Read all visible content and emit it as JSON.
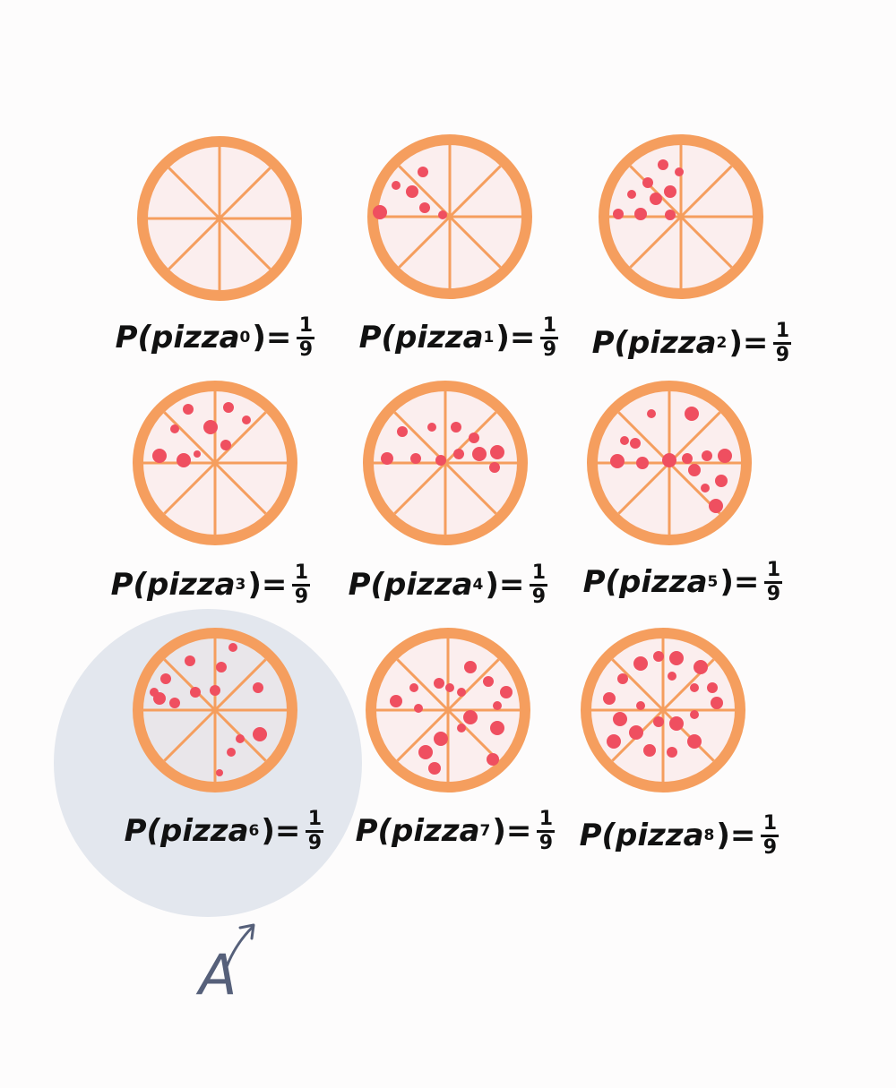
{
  "colors": {
    "background": "#fdfcfc",
    "crust": "#f59e5e",
    "cheese": "#fbeeee",
    "cheese_selected": "#e9e6ea",
    "pepperoni": "#ef4f60",
    "event_region": "#e3e7ee",
    "annotation": "#56607a"
  },
  "icons": {
    "pizza": "pizza-icon",
    "pointer": "curved-arrow-icon"
  },
  "pizzas": [
    {
      "prefix": "P(pizza",
      "sub": "0",
      "eq": ")=",
      "num": "1",
      "den": "9",
      "pepperoni_count": 0,
      "in_event_a": false
    },
    {
      "prefix": "P(pizza",
      "sub": "1",
      "eq": ")=",
      "num": "1",
      "den": "9",
      "pepperoni_count": 6,
      "in_event_a": false
    },
    {
      "prefix": "P(pizza",
      "sub": "2",
      "eq": ")=",
      "num": "1",
      "den": "9",
      "pepperoni_count": 9,
      "in_event_a": false
    },
    {
      "prefix": "P(pizza",
      "sub": "3",
      "eq": ")=",
      "num": "1",
      "den": "9",
      "pepperoni_count": 9,
      "in_event_a": false
    },
    {
      "prefix": "P(pizza",
      "sub": "4",
      "eq": ")=",
      "num": "1",
      "den": "9",
      "pepperoni_count": 11,
      "in_event_a": false
    },
    {
      "prefix": "P(pizza",
      "sub": "5",
      "eq": ")=",
      "num": "1",
      "den": "9",
      "pepperoni_count": 14,
      "in_event_a": false
    },
    {
      "prefix": "P(pizza",
      "sub": "6",
      "eq": ")=",
      "num": "1",
      "den": "9",
      "pepperoni_count": 14,
      "in_event_a": true
    },
    {
      "prefix": "P(pizza",
      "sub": "7",
      "eq": ")=",
      "num": "1",
      "den": "9",
      "pepperoni_count": 17,
      "in_event_a": false
    },
    {
      "prefix": "P(pizza",
      "sub": "8",
      "eq": ")=",
      "num": "1",
      "den": "9",
      "pepperoni_count": 20,
      "in_event_a": false
    }
  ],
  "event_label": "A"
}
